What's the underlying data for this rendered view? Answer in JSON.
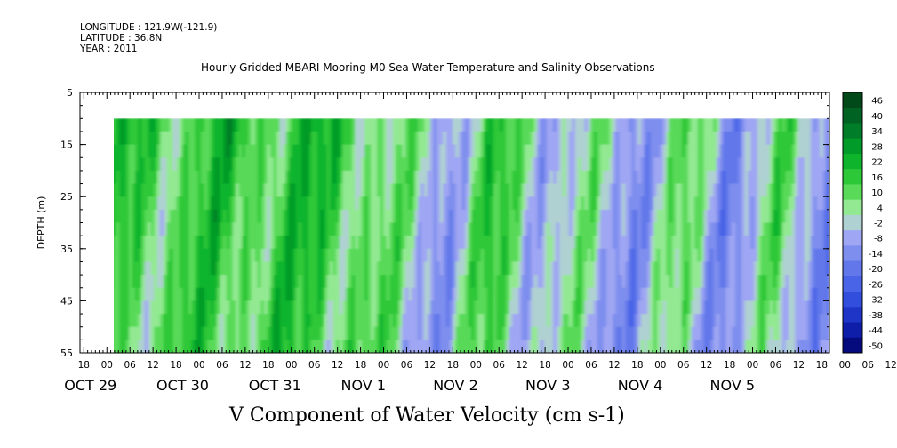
{
  "meta": {
    "longitude": "LONGITUDE : 121.9W(-121.9)",
    "latitude": "LATITUDE : 36.8N",
    "year": "YEAR : 2011"
  },
  "chart_data": {
    "type": "heatmap",
    "title": "Hourly Gridded MBARI Mooring M0 Sea Water Temperature and Salinity Observations",
    "xlabel": "V Component of Water Velocity (cm s-1)",
    "ylabel": "DEPTH (m)",
    "ylim": [
      5,
      55
    ],
    "y_inverted": true,
    "y_ticks": [
      5,
      15,
      25,
      35,
      45,
      55
    ],
    "data_depth_range": [
      10,
      55
    ],
    "x_range": [
      "2011-10-28 17:00",
      "2011-11-05 20:00"
    ],
    "data_start": "2011-10-29 00:00",
    "x_hour_ticks": [
      "18",
      "00",
      "06",
      "12",
      "18",
      "00",
      "06",
      "12",
      "18",
      "00",
      "06",
      "12",
      "18",
      "00",
      "06",
      "12",
      "18",
      "00",
      "06",
      "12",
      "18",
      "00",
      "06",
      "12",
      "18",
      "00",
      "06",
      "12",
      "18",
      "00",
      "06",
      "12",
      "18",
      "00",
      "06",
      "12",
      "18"
    ],
    "x_day_labels": [
      "OCT 29",
      "OCT 30",
      "OCT 31",
      "NOV  1",
      "NOV  2",
      "NOV  3",
      "NOV  4",
      "NOV  5"
    ],
    "colorbar": {
      "levels": [
        -50,
        -44,
        -38,
        -32,
        -26,
        -20,
        -14,
        -8,
        -2,
        4,
        10,
        16,
        22,
        28,
        34,
        40,
        46
      ],
      "tick_labels": [
        "46",
        "40",
        "34",
        "28",
        "22",
        "16",
        "10",
        "4",
        "-2",
        "-8",
        "-14",
        "-20",
        "-26",
        "-32",
        "-38",
        "-44",
        "-50"
      ]
    },
    "velocity_profile_cm_s": {
      "times": [
        "10-29 00",
        "10-29 12",
        "10-30 00",
        "10-30 12",
        "10-31 00",
        "10-31 12",
        "11-01 00",
        "11-01 12",
        "11-02 00",
        "11-02 12",
        "11-03 00",
        "11-03 12",
        "11-04 00",
        "11-04 12",
        "11-05 00",
        "11-05 12"
      ],
      "depth_10_to_55m_mean": [
        14,
        18,
        16,
        20,
        18,
        20,
        6,
        -2,
        16,
        4,
        2,
        -4,
        8,
        -6,
        8,
        -6
      ]
    }
  }
}
